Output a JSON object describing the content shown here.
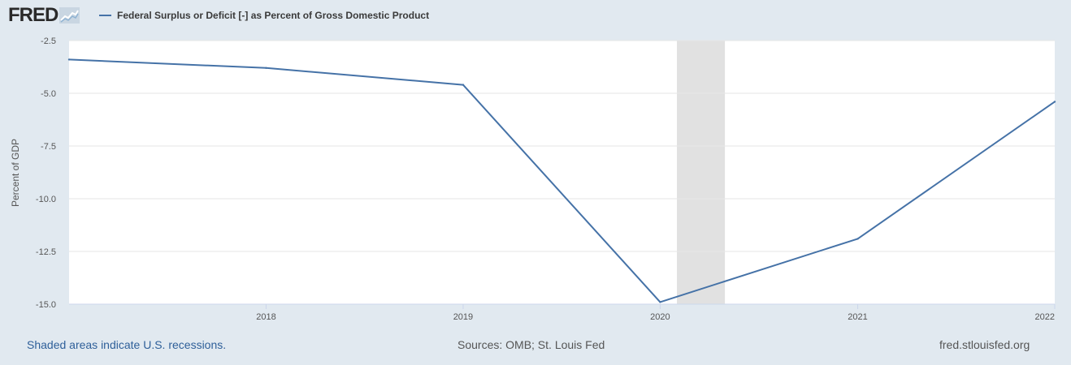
{
  "logo": {
    "text": "FRED",
    "icon": "line-graph-icon"
  },
  "colors": {
    "background": "#e1e9f0",
    "plot_background": "#ffffff",
    "series": "#4572a7",
    "recession": "#e1e1e1",
    "grid": "#e6e6e6",
    "link": "#2e5f99"
  },
  "chart_data": {
    "type": "line",
    "legend": {
      "placement": "top-left"
    },
    "series": [
      {
        "name": "Federal Surplus or Deficit [-] as Percent of Gross Domestic Product",
        "points": [
          {
            "x": "2017-01-01",
            "y": -3.4
          },
          {
            "x": "2018-01-01",
            "y": -3.8
          },
          {
            "x": "2019-01-01",
            "y": -4.6
          },
          {
            "x": "2020-01-01",
            "y": -14.9
          },
          {
            "x": "2021-01-01",
            "y": -11.9
          },
          {
            "x": "2022-01-01",
            "y": -5.4
          }
        ]
      }
    ],
    "xlim": [
      "2017-01-01",
      "2022-01-01"
    ],
    "ylim": [
      -15.0,
      -2.5
    ],
    "ylabel": "Percent of GDP",
    "yticks": [
      "-2.5",
      "-5.0",
      "-7.5",
      "-10.0",
      "-12.5",
      "-15.0"
    ],
    "xticks": [
      {
        "label": "2018",
        "date": "2018-01-01"
      },
      {
        "label": "2019",
        "date": "2019-01-01"
      },
      {
        "label": "2020",
        "date": "2020-01-01"
      },
      {
        "label": "2021",
        "date": "2021-01-01"
      },
      {
        "label": "2022",
        "date": "2022-01-01"
      }
    ],
    "recessions": [
      {
        "start": "2020-02-01",
        "end": "2020-04-30"
      }
    ],
    "grid": true
  },
  "footer": {
    "recession_note": "Shaded areas indicate U.S. recessions.",
    "sources": "Sources: OMB; St. Louis Fed",
    "site": "fred.stlouisfed.org"
  }
}
